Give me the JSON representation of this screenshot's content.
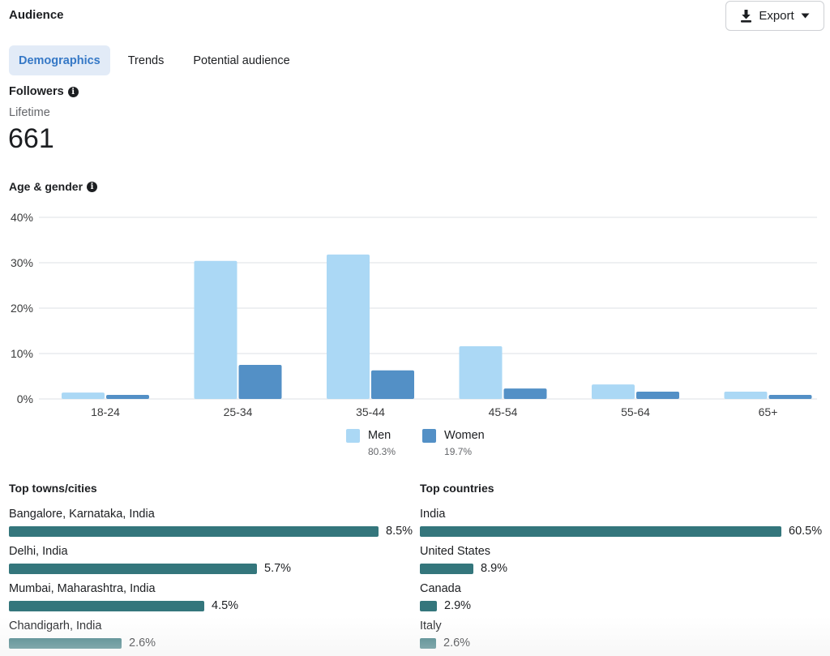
{
  "header": {
    "title": "Audience",
    "export_label": "Export"
  },
  "tabs": [
    {
      "label": "Demographics",
      "active": true
    },
    {
      "label": "Trends",
      "active": false
    },
    {
      "label": "Potential audience",
      "active": false
    }
  ],
  "followers": {
    "label": "Followers",
    "period": "Lifetime",
    "count": "661"
  },
  "age_gender": {
    "label": "Age & gender"
  },
  "colors": {
    "men": "#abd8f5",
    "women": "#5390c6",
    "list_bar": "#34767c",
    "gridline": "#e4e6eb",
    "tab_active_bg": "#e2ebf7",
    "tab_active_text": "#3578c6"
  },
  "chart_data": {
    "type": "bar",
    "title": "Age & gender",
    "xlabel": "",
    "ylabel": "",
    "categories": [
      "18-24",
      "25-34",
      "35-44",
      "45-54",
      "55-64",
      "65+"
    ],
    "series": [
      {
        "name": "Men",
        "total": "80.3%",
        "values": [
          1.4,
          30.4,
          31.8,
          11.6,
          3.2,
          1.6
        ]
      },
      {
        "name": "Women",
        "total": "19.7%",
        "values": [
          0.9,
          7.5,
          6.3,
          2.3,
          1.6,
          0.9
        ]
      }
    ],
    "ylim": [
      0,
      40
    ],
    "yticks": [
      0,
      10,
      20,
      30,
      40
    ],
    "ytick_labels": [
      "0%",
      "10%",
      "20%",
      "30%",
      "40%"
    ],
    "grid": true,
    "legend_position": "bottom-center"
  },
  "legend": [
    {
      "name": "Men",
      "pct": "80.3%"
    },
    {
      "name": "Women",
      "pct": "19.7%"
    }
  ],
  "top_cities": {
    "title": "Top towns/cities",
    "max_value": 8.5,
    "items": [
      {
        "name": "Bangalore, Karnataka, India",
        "value": 8.5,
        "label": "8.5%"
      },
      {
        "name": "Delhi, India",
        "value": 5.7,
        "label": "5.7%"
      },
      {
        "name": "Mumbai, Maharashtra, India",
        "value": 4.5,
        "label": "4.5%"
      },
      {
        "name": "Chandigarh, India",
        "value": 2.6,
        "label": "2.6%"
      }
    ]
  },
  "top_countries": {
    "title": "Top countries",
    "max_value": 60.5,
    "items": [
      {
        "name": "India",
        "value": 60.5,
        "label": "60.5%"
      },
      {
        "name": "United States",
        "value": 8.9,
        "label": "8.9%"
      },
      {
        "name": "Canada",
        "value": 2.9,
        "label": "2.9%"
      },
      {
        "name": "Italy",
        "value": 2.6,
        "label": "2.6%"
      }
    ]
  }
}
